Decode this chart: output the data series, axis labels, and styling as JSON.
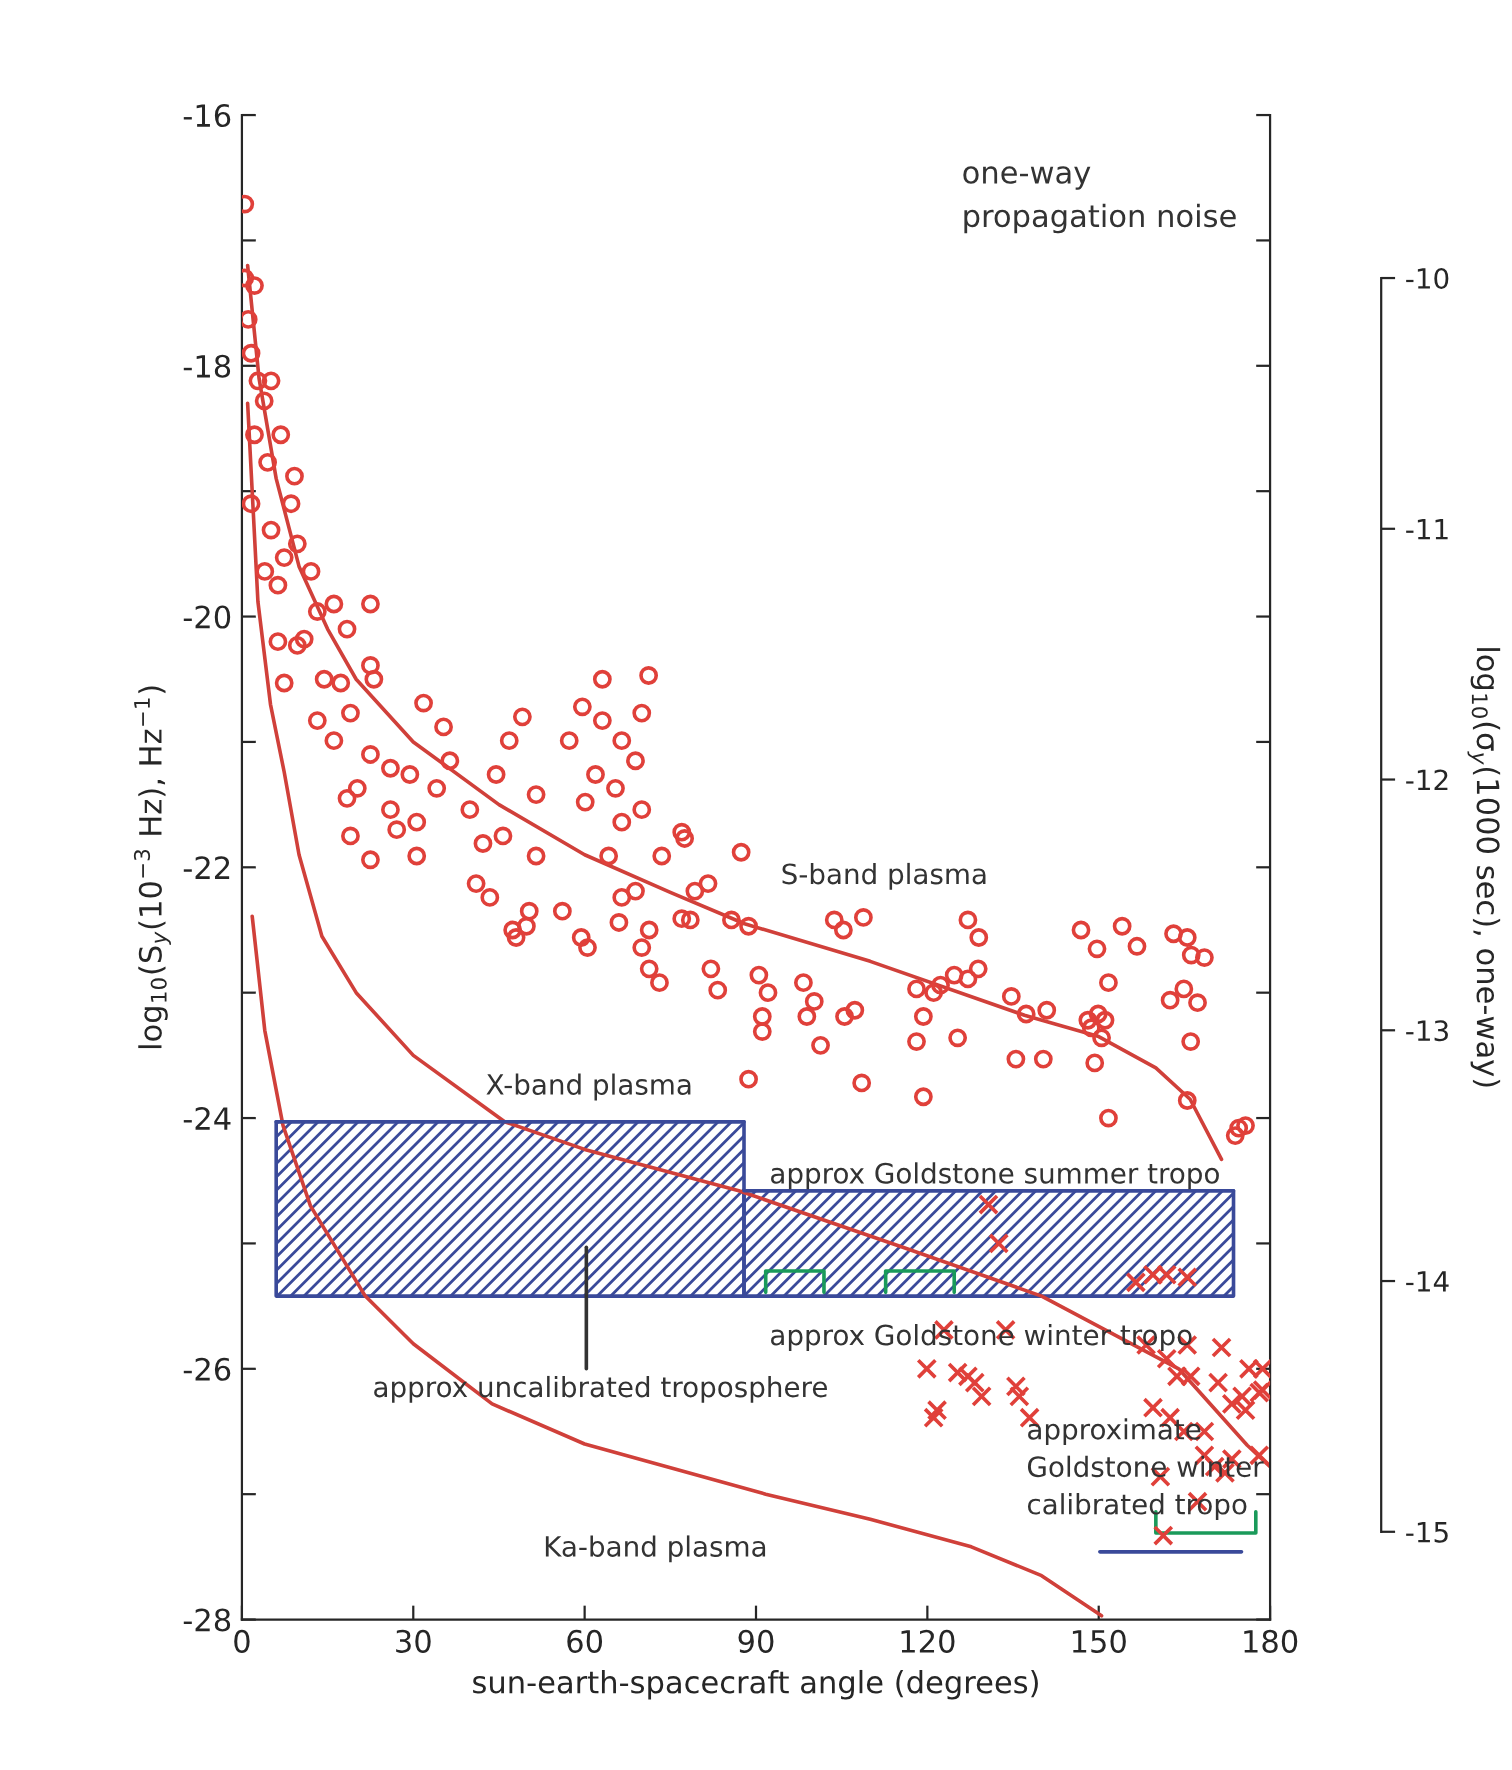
{
  "chart_data": {
    "type": "scatter",
    "xlabel": "sun-earth-spacecraft angle (degrees)",
    "ylabel": "log$_{10}$(S$_{y}$(10$^{−3}$ Hz), Hz$^{−1}$)",
    "y2label": "log$_{10}$(σ$_{y}$(1000 sec), one-way)",
    "xlim": [
      0,
      180
    ],
    "xticks": [
      0,
      30,
      60,
      90,
      120,
      150,
      180
    ],
    "ylim": [
      -28,
      -16
    ],
    "yticks": [
      -28,
      {
        "value": -27,
        "label": null
      },
      -26,
      {
        "value": -25,
        "label": null
      },
      -24,
      {
        "value": -23,
        "label": null
      },
      -22,
      {
        "value": -21,
        "label": null
      },
      -20,
      {
        "value": -19,
        "label": null
      },
      -18,
      {
        "value": -17,
        "label": null
      },
      -16
    ],
    "y2lim": [
      -15.35,
      -9.35
    ],
    "y2ticks": [
      -15,
      -14,
      -13,
      -12,
      -11,
      -10
    ],
    "grid": false,
    "legend": false,
    "annotations": [
      "one-way\npropagation noise",
      "S-band plasma",
      "X-band plasma",
      "approx Goldstone summer tropo",
      "approx Goldstone winter tropo",
      "approx uncalibrated troposphere",
      "approximate\nGoldstone winter\ncalibrated tropo",
      "Ka-band plasma"
    ],
    "series": [
      {
        "marker": "circle",
        "color": "#e0403a",
        "x": [
          0.5,
          0.5,
          2.2,
          1.1,
          1.6,
          2.8,
          3.9,
          5.1,
          2.2,
          6.8,
          4.5,
          9.2,
          1.6,
          8.6,
          5.1,
          9.7,
          7.4,
          4.0,
          12.1,
          6.3,
          16.1,
          22.5,
          13.2,
          10.9,
          18.4,
          6.3,
          7.4,
          14.4,
          17.3,
          23.1,
          13.2,
          19,
          16.1,
          22.5,
          20.2,
          26,
          18.4,
          19,
          22.5,
          26,
          29.4,
          31.8,
          35.3,
          34.1,
          30.6,
          36.4,
          39.9,
          42.2,
          44.5,
          46.8,
          49.1,
          45.7,
          51.5,
          41,
          43.4,
          50.3,
          56.1,
          51.5,
          57.3,
          59.6,
          63.1,
          63.1,
          61.9,
          60.1,
          65.4,
          66.5,
          64.2,
          68.9,
          71.2,
          70,
          68.9,
          66.5,
          70,
          73.5,
          77,
          79.3,
          81.6,
          66.5,
          77,
          30.6,
          27.1,
          9.7,
          22.5,
          129,
          149.7,
          156.7,
          166.2,
          168.5,
          108.8,
          105.3,
          77.5,
          87.4,
          83.3,
          92.1,
          100.2,
          47.4,
          49.8,
          48,
          59.4,
          60.5,
          66,
          70,
          71.3,
          71.3,
          73.1,
          78.5,
          82.1,
          85.7,
          88.7,
          88.7,
          90.5,
          91.1,
          91.1,
          98.3,
          98.9,
          101.3,
          103.7,
          105.5,
          107.3,
          108.5,
          118.1,
          119.3,
          118.1,
          119.3,
          121.1,
          122.3,
          124.7,
          125.3,
          127.1,
          127.1,
          128.9,
          134.7,
          135.5,
          137.3,
          140.3,
          140.9,
          146.9,
          148.1,
          148.7,
          149.3,
          149.9,
          150.5,
          151.1,
          151.7,
          151.7,
          154.1,
          162.5,
          163.1,
          164.9,
          165.5,
          165.5,
          166.1,
          167.3,
          173.9,
          175.7,
          174.5
        ],
        "values": [
          -16.71,
          -17.3,
          -17.36,
          -17.63,
          -17.9,
          -18.12,
          -18.28,
          -18.12,
          -18.55,
          -18.55,
          -18.77,
          -18.88,
          -19.1,
          -19.1,
          -19.31,
          -19.42,
          -19.53,
          -19.64,
          -19.64,
          -19.75,
          -19.9,
          -19.9,
          -19.96,
          -20.18,
          -20.1,
          -20.2,
          -20.53,
          -20.5,
          -20.53,
          -20.5,
          -20.83,
          -20.77,
          -20.99,
          -21.1,
          -21.37,
          -21.21,
          -21.45,
          -21.75,
          -21.94,
          -21.54,
          -21.26,
          -20.69,
          -20.88,
          -21.37,
          -21.64,
          -21.15,
          -21.54,
          -21.81,
          -21.26,
          -20.99,
          -20.8,
          -21.75,
          -21.42,
          -22.13,
          -22.24,
          -22.35,
          -22.35,
          -21.91,
          -20.99,
          -20.72,
          -20.5,
          -20.83,
          -21.26,
          -21.48,
          -21.37,
          -21.64,
          -21.91,
          -22.19,
          -20.47,
          -20.77,
          -21.15,
          -20.99,
          -21.54,
          -21.91,
          -21.72,
          -22.19,
          -22.13,
          -22.24,
          -22.41,
          -21.91,
          -21.7,
          -20.23,
          -20.39,
          -22.56,
          -22.65,
          -22.63,
          -22.7,
          -22.72,
          -22.4,
          -22.5,
          -21.77,
          -21.88,
          -22.98,
          -23.0,
          -23.07,
          -22.5,
          -22.47,
          -22.56,
          -22.56,
          -22.64,
          -22.44,
          -22.64,
          -22.5,
          -22.81,
          -22.92,
          -22.42,
          -22.81,
          -22.42,
          -22.47,
          -23.69,
          -22.86,
          -23.19,
          -23.31,
          -22.92,
          -23.19,
          -23.42,
          -22.42,
          -23.19,
          -23.14,
          -23.72,
          -22.97,
          -23.19,
          -23.39,
          -23.83,
          -23.0,
          -22.94,
          -22.86,
          -23.36,
          -22.89,
          -22.42,
          -22.81,
          -23.03,
          -23.53,
          -23.17,
          -23.53,
          -23.14,
          -22.5,
          -23.22,
          -23.28,
          -23.56,
          -23.17,
          -23.36,
          -23.22,
          -22.92,
          -24.0,
          -22.47,
          -23.06,
          -22.53,
          -22.97,
          -22.56,
          -23.86,
          -23.39,
          -23.08,
          -24.14,
          -24.06,
          -24.08
        ]
      },
      {
        "marker": "cross",
        "color": "#e0403a",
        "x": [
          130.7,
          132.5,
          156.5,
          159.5,
          161.9,
          165.5,
          122.9,
          133.7,
          119.9,
          121.7,
          121.1,
          125.3,
          127.1,
          128.3,
          129.5,
          135.5,
          136.1,
          137.9,
          158.3,
          161.9,
          165.5,
          171.5,
          163.7,
          166.1,
          170.9,
          176.3,
          178.7,
          178.7,
          159.5,
          162.5,
          164.9,
          168.5,
          173.3,
          175.1,
          175.7,
          178.1,
          168.5,
          170.3,
          172.1,
          173.3,
          178.1,
          160.8,
          167.3,
          161.3
        ],
        "values": [
          -24.69,
          -25.0,
          -25.31,
          -25.25,
          -25.25,
          -25.27,
          -25.69,
          -25.69,
          -26.0,
          -26.33,
          -26.39,
          -26.03,
          -26.06,
          -26.11,
          -26.22,
          -26.14,
          -26.22,
          -26.39,
          -25.81,
          -25.92,
          -25.81,
          -25.83,
          -26.06,
          -26.06,
          -26.11,
          -26.0,
          -26.0,
          -26.17,
          -26.31,
          -26.39,
          -26.5,
          -26.5,
          -26.28,
          -26.22,
          -26.33,
          -26.19,
          -26.69,
          -26.78,
          -26.83,
          -26.72,
          -26.69,
          -26.86,
          -27.06,
          -27.33
        ]
      },
      {
        "type": "line",
        "marker": "none",
        "line_style": "solid",
        "color": "#d0403a",
        "x": [
          1,
          3,
          6,
          10,
          15,
          20,
          30,
          45,
          60,
          75,
          88,
          110,
          137,
          150,
          160,
          166,
          171.5
        ],
        "values": [
          -17.2,
          -18.1,
          -18.9,
          -19.6,
          -20.1,
          -20.5,
          -21.0,
          -21.5,
          -21.9,
          -22.2,
          -22.45,
          -22.75,
          -23.18,
          -23.35,
          -23.6,
          -23.85,
          -24.33
        ]
      },
      {
        "type": "line",
        "marker": "none",
        "line_style": "solid",
        "color": "#d0403a",
        "x": [
          1,
          2.8,
          5,
          7.4,
          10,
          14,
          20,
          30,
          46,
          60,
          87,
          115.7,
          140,
          164,
          176,
          180
        ],
        "values": [
          -18.3,
          -19.88,
          -20.7,
          -21.24,
          -21.9,
          -22.55,
          -23.0,
          -23.5,
          -24.03,
          -24.25,
          -24.58,
          -25.03,
          -25.42,
          -26.0,
          -26.61,
          -26.78
        ]
      },
      {
        "type": "line",
        "marker": "none",
        "line_style": "solid",
        "color": "#d0403a",
        "x": [
          1.8,
          4,
          7.2,
          12,
          21.6,
          30,
          43.8,
          60,
          91.7,
          110,
          127.7,
          140,
          150.5
        ],
        "values": [
          -22.39,
          -23.3,
          -24.06,
          -24.7,
          -25.42,
          -25.8,
          -26.28,
          -26.6,
          -27.0,
          -27.2,
          -27.42,
          -27.65,
          -27.97
        ]
      },
      {
        "type": "line",
        "marker": "none",
        "line_style": "solid",
        "color": "#3a4a9a",
        "x": [
          6,
          87.9
        ],
        "values": [
          -24.03,
          -24.03
        ],
        "lower": [
          -25.42,
          -25.42
        ],
        "upper": [
          -24.03,
          -24.03
        ]
      },
      {
        "type": "line",
        "marker": "none",
        "line_style": "solid",
        "color": "#3a4a9a",
        "x": [
          87.9,
          173.6
        ],
        "values": [
          -24.58,
          -24.58
        ],
        "lower": [
          -25.42,
          -25.42
        ],
        "upper": [
          -24.58,
          -24.58
        ]
      },
      {
        "type": "line",
        "marker": "none",
        "line_style": "solid",
        "color": "#1a9a5a",
        "x": [
          91.7,
          91.7,
          101.9,
          101.9
        ],
        "values": [
          -25.39,
          -25.22,
          -25.22,
          -25.39
        ]
      },
      {
        "type": "line",
        "marker": "none",
        "line_style": "solid",
        "color": "#1a9a5a",
        "x": [
          112.7,
          112.7,
          124.7,
          124.7
        ],
        "values": [
          -25.39,
          -25.22,
          -25.22,
          -25.39
        ]
      },
      {
        "type": "line",
        "marker": "none",
        "line_style": "solid",
        "color": "#1a9a5a",
        "x": [
          160,
          160,
          177.5,
          177.5
        ],
        "values": [
          -27.14,
          -27.31,
          -27.31,
          -27.14
        ]
      },
      {
        "type": "line",
        "marker": "none",
        "line_style": "solid",
        "color": "#3a4a9a",
        "x": [
          150.2,
          175
        ],
        "values": [
          -27.46,
          -27.46
        ]
      },
      {
        "type": "line",
        "marker": "none",
        "line_style": "solid",
        "color": "#333333",
        "x": [
          60.3,
          60.3
        ],
        "values": [
          -25.03,
          -26.0
        ]
      }
    ]
  }
}
